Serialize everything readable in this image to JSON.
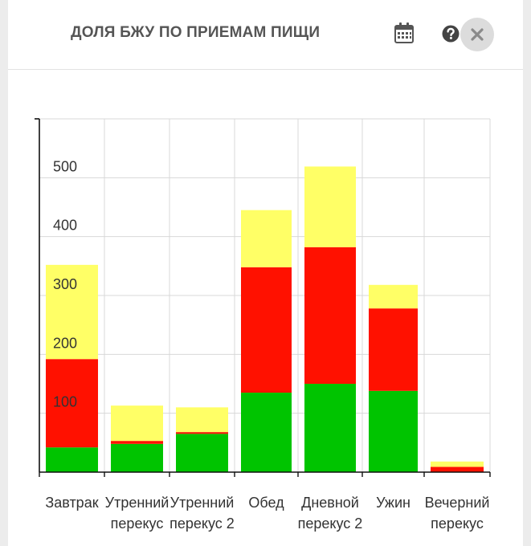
{
  "widget": {
    "title": "ДОЛЯ БЖУ ПО ПРИЕМАМ ПИЩИ",
    "calendar_icon": "calendar-icon",
    "help_icon": "question-circle-icon",
    "close_icon": "close-x-icon"
  },
  "chart_data": {
    "type": "bar",
    "stacked": true,
    "categories": [
      [
        "Завтрак"
      ],
      [
        "Утренний",
        "перекус"
      ],
      [
        "Утренний",
        "перекус 2"
      ],
      [
        "Обед"
      ],
      [
        "Дневной",
        "перекус 2"
      ],
      [
        "Ужин"
      ],
      [
        "Вечерний",
        "перекус"
      ]
    ],
    "series": [
      {
        "color": "#00c400",
        "values": [
          42,
          48,
          65,
          135,
          150,
          138,
          0
        ]
      },
      {
        "color": "#ff1100",
        "values": [
          150,
          5,
          3,
          213,
          232,
          140,
          9
        ]
      },
      {
        "color": "#ffff66",
        "values": [
          160,
          60,
          42,
          97,
          137,
          40,
          9
        ]
      }
    ],
    "ylim": [
      0,
      600
    ],
    "yticks": [
      100,
      200,
      300,
      400,
      500
    ],
    "grid": true,
    "legend": "none",
    "title": "",
    "xlabel": "",
    "ylabel": ""
  }
}
